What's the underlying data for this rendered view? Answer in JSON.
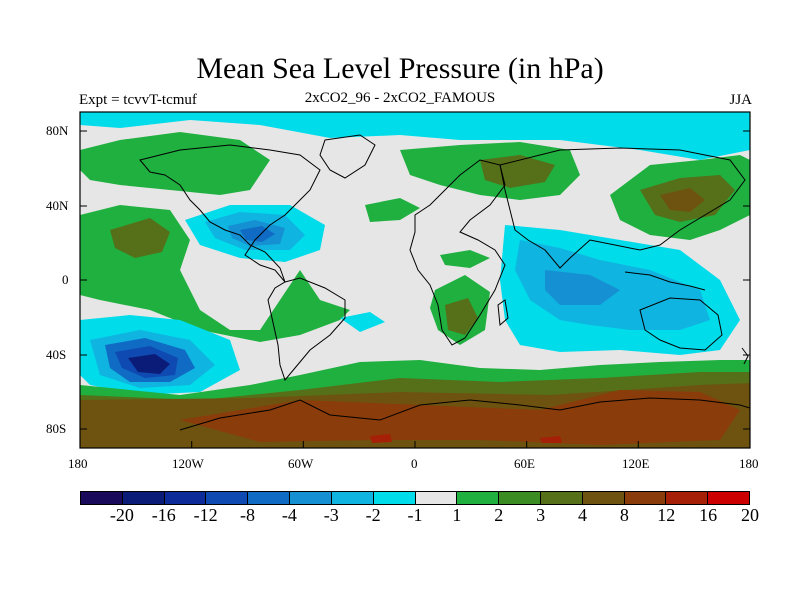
{
  "title": "Mean Sea Level Pressure (in hPa)",
  "experiment": "Expt = tcvvT-tcmuf",
  "comparison": "2xCO2_96 - 2xCO2_FAMOUS",
  "season": "JJA",
  "map": {
    "x_ticks": [
      "180",
      "120W",
      "60W",
      "0",
      "60E",
      "120E",
      "180"
    ],
    "y_ticks": [
      "80N",
      "40N",
      "0",
      "40S",
      "80S"
    ]
  },
  "colorbar": {
    "labels": [
      "-20",
      "-16",
      "-12",
      "-8",
      "-4",
      "-3",
      "-2",
      "-1",
      "1",
      "2",
      "3",
      "4",
      "8",
      "12",
      "16",
      "20"
    ],
    "colors": [
      "#1a0a5c",
      "#0a1c78",
      "#0d2c9a",
      "#0f4ab2",
      "#0f6bc4",
      "#1590d2",
      "#10b4e0",
      "#00dcea",
      "#e6e6e6",
      "#1fb040",
      "#3c8c24",
      "#557018",
      "#6e5310",
      "#8a3c0a",
      "#a52006",
      "#cc0000"
    ]
  }
}
